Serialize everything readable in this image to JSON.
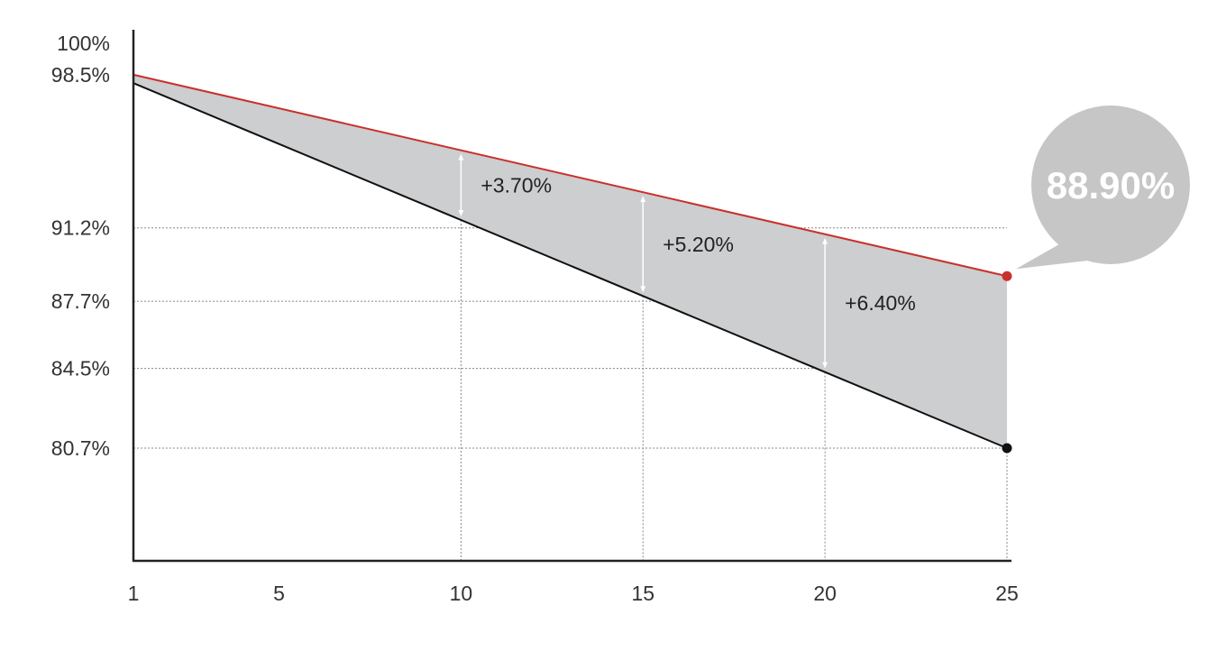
{
  "chart_data": {
    "type": "area",
    "title": "",
    "xlabel": "",
    "ylabel": "",
    "x_ticks": [
      1,
      5,
      10,
      15,
      20,
      25
    ],
    "y_ticks": [
      {
        "value": 100,
        "label": "100%"
      },
      {
        "value": 98.5,
        "label": "98.5%"
      },
      {
        "value": 91.2,
        "label": "91.2%"
      },
      {
        "value": 87.7,
        "label": "87.7%"
      },
      {
        "value": 84.5,
        "label": "84.5%"
      },
      {
        "value": 80.7,
        "label": "80.7%"
      }
    ],
    "gridlines_y": [
      91.2,
      87.7,
      84.5,
      80.7
    ],
    "gridlines_x": [
      10,
      15,
      20,
      25
    ],
    "series": [
      {
        "color": "#c9302c",
        "points": [
          {
            "x": 1,
            "y": 98.5
          },
          {
            "x": 25,
            "y": 88.9
          }
        ],
        "end_marker": true
      },
      {
        "color": "#111111",
        "points": [
          {
            "x": 1,
            "y": 98.1
          },
          {
            "x": 25,
            "y": 80.7
          }
        ],
        "end_marker": true
      }
    ],
    "fill_color": "#cccecf",
    "annotations": [
      {
        "x": 10,
        "text": "+3.70%"
      },
      {
        "x": 15,
        "text": "+5.20%"
      },
      {
        "x": 20,
        "text": "+6.40%"
      }
    ],
    "callout": {
      "x": 25,
      "y": 88.9,
      "text": "88.90%",
      "color": "#c6c6c6"
    }
  }
}
